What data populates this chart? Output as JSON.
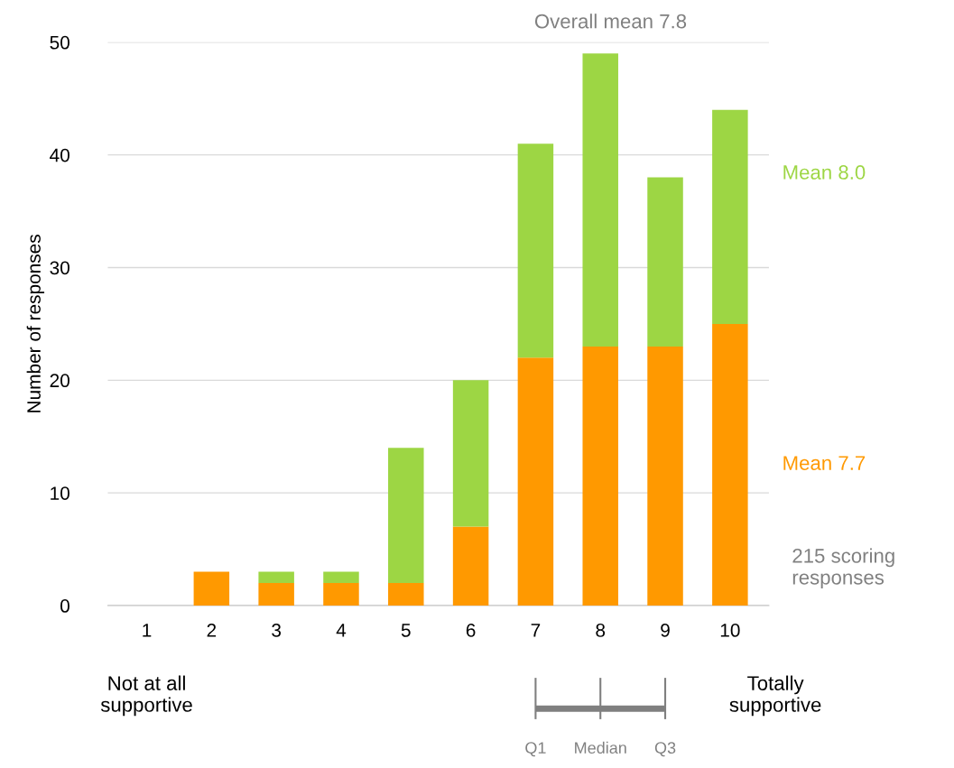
{
  "chart_data": {
    "type": "bar",
    "stacked": true,
    "ylabel": "Number of responses",
    "categories": [
      "1",
      "2",
      "3",
      "4",
      "5",
      "6",
      "7",
      "8",
      "9",
      "10"
    ],
    "series": [
      {
        "name": "Mean 7.7",
        "color": "#ff9900",
        "values": [
          0,
          3,
          2,
          2,
          2,
          7,
          22,
          23,
          23,
          25
        ]
      },
      {
        "name": "Mean 8.0",
        "color": "#9dd644",
        "values": [
          0,
          0,
          1,
          1,
          12,
          13,
          19,
          26,
          15,
          19
        ]
      }
    ],
    "ylim": [
      0,
      50
    ],
    "yticks": [
      0,
      10,
      20,
      30,
      40,
      50
    ],
    "grid": "y",
    "annotations": [
      "Overall mean 7.8",
      "215 scoring responses",
      "Not at all supportive",
      "Totally supportive",
      "Q1",
      "Median",
      "Q3"
    ]
  }
}
